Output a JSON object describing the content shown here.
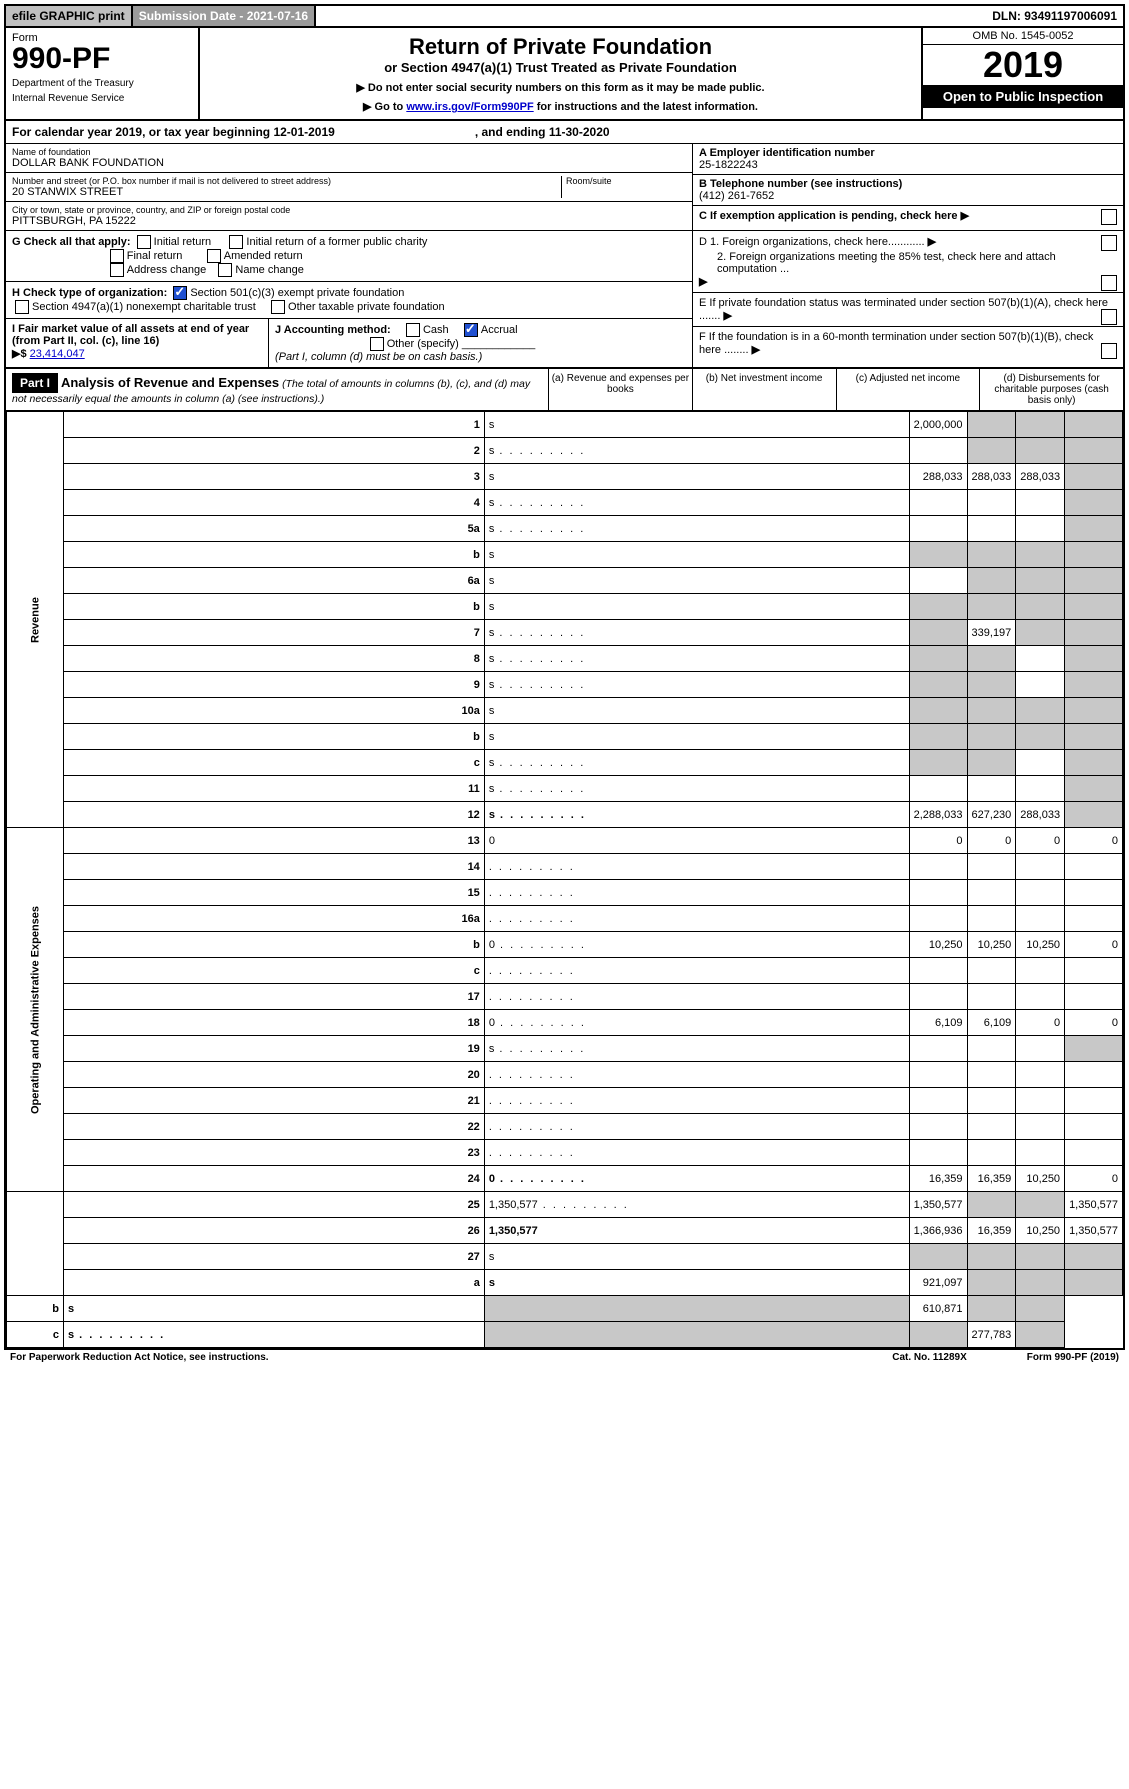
{
  "top": {
    "efile": "efile GRAPHIC print",
    "sub_label": "Submission Date - 2021-07-16",
    "dln": "DLN: 93491197006091"
  },
  "header": {
    "form_word": "Form",
    "form_no": "990-PF",
    "dept1": "Department of the Treasury",
    "dept2": "Internal Revenue Service",
    "title": "Return of Private Foundation",
    "subtitle": "or Section 4947(a)(1) Trust Treated as Private Foundation",
    "note1": "▶ Do not enter social security numbers on this form as it may be made public.",
    "note2_pre": "▶ Go to ",
    "note2_link": "www.irs.gov/Form990PF",
    "note2_post": " for instructions and the latest information.",
    "omb": "OMB No. 1545-0052",
    "year": "2019",
    "open": "Open to Public Inspection"
  },
  "cal": {
    "text": "For calendar year 2019, or tax year beginning 12-01-2019",
    "end": ", and ending 11-30-2020"
  },
  "id": {
    "name_lbl": "Name of foundation",
    "name": "DOLLAR BANK FOUNDATION",
    "addr_lbl": "Number and street (or P.O. box number if mail is not delivered to street address)",
    "addr": "20 STANWIX STREET",
    "room_lbl": "Room/suite",
    "city_lbl": "City or town, state or province, country, and ZIP or foreign postal code",
    "city": "PITTSBURGH, PA  15222",
    "a_lbl": "A Employer identification number",
    "a_val": "25-1822243",
    "b_lbl": "B Telephone number (see instructions)",
    "b_val": "(412) 261-7652",
    "c_lbl": "C If exemption application is pending, check here",
    "d1": "D 1. Foreign organizations, check here............",
    "d2": "2. Foreign organizations meeting the 85% test, check here and attach computation ...",
    "e": "E  If private foundation status was terminated under section 507(b)(1)(A), check here .......",
    "f": "F  If the foundation is in a 60-month termination under section 507(b)(1)(B), check here ........"
  },
  "g": {
    "label": "G Check all that apply:",
    "o1": "Initial return",
    "o2": "Initial return of a former public charity",
    "o3": "Final return",
    "o4": "Amended return",
    "o5": "Address change",
    "o6": "Name change"
  },
  "h": {
    "label": "H Check type of organization:",
    "o1": "Section 501(c)(3) exempt private foundation",
    "o2": "Section 4947(a)(1) nonexempt charitable trust",
    "o3": "Other taxable private foundation"
  },
  "i": {
    "label": "I Fair market value of all assets at end of year (from Part II, col. (c), line 16)",
    "arrow": "▶$",
    "val": "23,414,047"
  },
  "j": {
    "label": "J Accounting method:",
    "o1": "Cash",
    "o2": "Accrual",
    "o3": "Other (specify)",
    "note": "(Part I, column (d) must be on cash basis.)"
  },
  "part1": {
    "hdr": "Part I",
    "title": "Analysis of Revenue and Expenses",
    "sub": "(The total of amounts in columns (b), (c), and (d) may not necessarily equal the amounts in column (a) (see instructions).)",
    "ca": "(a)   Revenue and expenses per books",
    "cb": "(b)   Net investment income",
    "cc": "(c)   Adjusted net income",
    "cd": "(d)   Disbursements for charitable purposes (cash basis only)"
  },
  "sections": {
    "rev": "Revenue",
    "exp": "Operating and Administrative Expenses"
  },
  "rows": [
    {
      "n": "1",
      "d": "s",
      "a": "2,000,000",
      "b": "s",
      "c": "s"
    },
    {
      "n": "2",
      "d": "s",
      "a": "",
      "b": "s",
      "c": "s",
      "dots": 1
    },
    {
      "n": "3",
      "d": "s",
      "a": "288,033",
      "b": "288,033",
      "c": "288,033"
    },
    {
      "n": "4",
      "d": "s",
      "a": "",
      "b": "",
      "c": "",
      "dots": 1
    },
    {
      "n": "5a",
      "d": "s",
      "a": "",
      "b": "",
      "c": "",
      "dots": 1
    },
    {
      "n": "b",
      "d": "s",
      "a": "s",
      "b": "s",
      "c": "s"
    },
    {
      "n": "6a",
      "d": "s",
      "a": "",
      "b": "s",
      "c": "s"
    },
    {
      "n": "b",
      "d": "s",
      "a": "s",
      "b": "s",
      "c": "s"
    },
    {
      "n": "7",
      "d": "s",
      "a": "s",
      "b": "339,197",
      "c": "s",
      "dots": 1
    },
    {
      "n": "8",
      "d": "s",
      "a": "s",
      "b": "s",
      "c": "",
      "dots": 1
    },
    {
      "n": "9",
      "d": "s",
      "a": "s",
      "b": "s",
      "c": "",
      "dots": 1
    },
    {
      "n": "10a",
      "d": "s",
      "a": "s",
      "b": "s",
      "c": "s"
    },
    {
      "n": "b",
      "d": "s",
      "a": "s",
      "b": "s",
      "c": "s"
    },
    {
      "n": "c",
      "d": "s",
      "a": "s",
      "b": "s",
      "c": "",
      "dots": 1
    },
    {
      "n": "11",
      "d": "s",
      "a": "",
      "b": "",
      "c": "",
      "dots": 1
    },
    {
      "n": "12",
      "d": "s",
      "a": "2,288,033",
      "b": "627,230",
      "c": "288,033",
      "bold": 1,
      "dots": 1
    },
    {
      "n": "13",
      "d": "0",
      "a": "0",
      "b": "0",
      "c": "0"
    },
    {
      "n": "14",
      "d": "",
      "a": "",
      "b": "",
      "c": "",
      "dots": 1
    },
    {
      "n": "15",
      "d": "",
      "a": "",
      "b": "",
      "c": "",
      "dots": 1
    },
    {
      "n": "16a",
      "d": "",
      "a": "",
      "b": "",
      "c": "",
      "dots": 1
    },
    {
      "n": "b",
      "d": "0",
      "a": "10,250",
      "b": "10,250",
      "c": "10,250",
      "dots": 1
    },
    {
      "n": "c",
      "d": "",
      "a": "",
      "b": "",
      "c": "",
      "dots": 1
    },
    {
      "n": "17",
      "d": "",
      "a": "",
      "b": "",
      "c": "",
      "dots": 1
    },
    {
      "n": "18",
      "d": "0",
      "a": "6,109",
      "b": "6,109",
      "c": "0",
      "dots": 1
    },
    {
      "n": "19",
      "d": "s",
      "a": "",
      "b": "",
      "c": "",
      "dots": 1
    },
    {
      "n": "20",
      "d": "",
      "a": "",
      "b": "",
      "c": "",
      "dots": 1
    },
    {
      "n": "21",
      "d": "",
      "a": "",
      "b": "",
      "c": "",
      "dots": 1
    },
    {
      "n": "22",
      "d": "",
      "a": "",
      "b": "",
      "c": "",
      "dots": 1
    },
    {
      "n": "23",
      "d": "",
      "a": "",
      "b": "",
      "c": "",
      "dots": 1
    },
    {
      "n": "24",
      "d": "0",
      "a": "16,359",
      "b": "16,359",
      "c": "10,250",
      "bold": 1,
      "dots": 1
    },
    {
      "n": "25",
      "d": "1,350,577",
      "a": "1,350,577",
      "b": "s",
      "c": "s",
      "dots": 1
    },
    {
      "n": "26",
      "d": "1,350,577",
      "a": "1,366,936",
      "b": "16,359",
      "c": "10,250",
      "bold": 1
    },
    {
      "n": "27",
      "d": "s",
      "a": "s",
      "b": "s",
      "c": "s"
    },
    {
      "n": "a",
      "d": "s",
      "a": "921,097",
      "b": "s",
      "c": "s",
      "bold": 1
    },
    {
      "n": "b",
      "d": "s",
      "a": "s",
      "b": "610,871",
      "c": "s",
      "bold": 1
    },
    {
      "n": "c",
      "d": "s",
      "a": "s",
      "b": "s",
      "c": "277,783",
      "bold": 1,
      "dots": 1
    }
  ],
  "footer": {
    "l": "For Paperwork Reduction Act Notice, see instructions.",
    "m": "Cat. No. 11289X",
    "r": "Form 990-PF (2019)"
  },
  "colors": {
    "shade": "#c8c8c8",
    "black": "#000000",
    "link": "#0000cc"
  }
}
